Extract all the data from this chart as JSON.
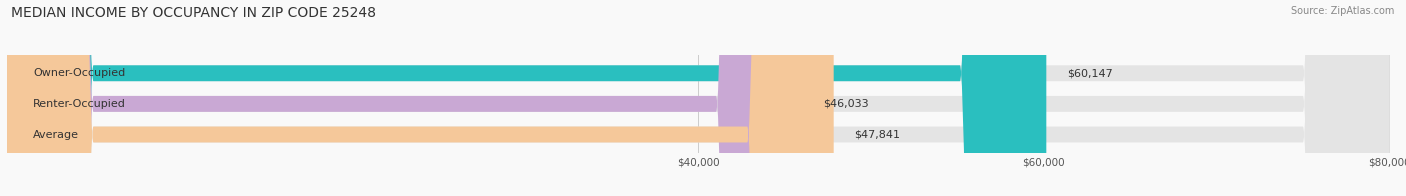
{
  "title": "MEDIAN INCOME BY OCCUPANCY IN ZIP CODE 25248",
  "source": "Source: ZipAtlas.com",
  "categories": [
    "Owner-Occupied",
    "Renter-Occupied",
    "Average"
  ],
  "values": [
    60147,
    46033,
    47841
  ],
  "bar_colors": [
    "#2abfbf",
    "#c9a8d4",
    "#f5c89a"
  ],
  "value_labels": [
    "$60,147",
    "$46,033",
    "$47,841"
  ],
  "xlim_min": 0,
  "xlim_max": 80000,
  "xticks": [
    40000,
    60000,
    80000
  ],
  "xtick_labels": [
    "$40,000",
    "$60,000",
    "$80,000"
  ],
  "title_fontsize": 10,
  "label_fontsize": 8,
  "bar_height": 0.52,
  "background_color": "#f9f9f9",
  "bg_bar_color": "#e4e4e4"
}
